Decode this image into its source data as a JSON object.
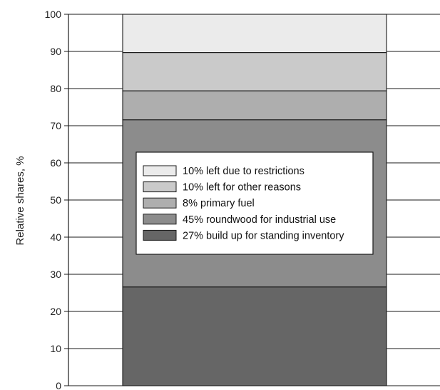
{
  "chart_data": {
    "type": "bar",
    "stacked": true,
    "categories": [
      ""
    ],
    "ylabel": "Relative shares, %",
    "ylim": [
      0,
      100
    ],
    "yticks": [
      0,
      10,
      20,
      30,
      40,
      50,
      60,
      70,
      80,
      90,
      100
    ],
    "grid": true,
    "legend_position": "center",
    "series": [
      {
        "name": "27% build up for standing inventory",
        "values": [
          26.6
        ],
        "color": "#666666"
      },
      {
        "name": "45% roundwood for industrial use",
        "values": [
          45.0
        ],
        "color": "#8c8c8c"
      },
      {
        "name": "8% primary fuel",
        "values": [
          7.8
        ],
        "color": "#aeaeae"
      },
      {
        "name": "10% left for other reasons",
        "values": [
          10.3
        ],
        "color": "#cacaca"
      },
      {
        "name": "10% left due to restrictions",
        "values": [
          10.3
        ],
        "color": "#ebebeb"
      }
    ],
    "legend_order": [
      4,
      3,
      2,
      1,
      0
    ]
  }
}
